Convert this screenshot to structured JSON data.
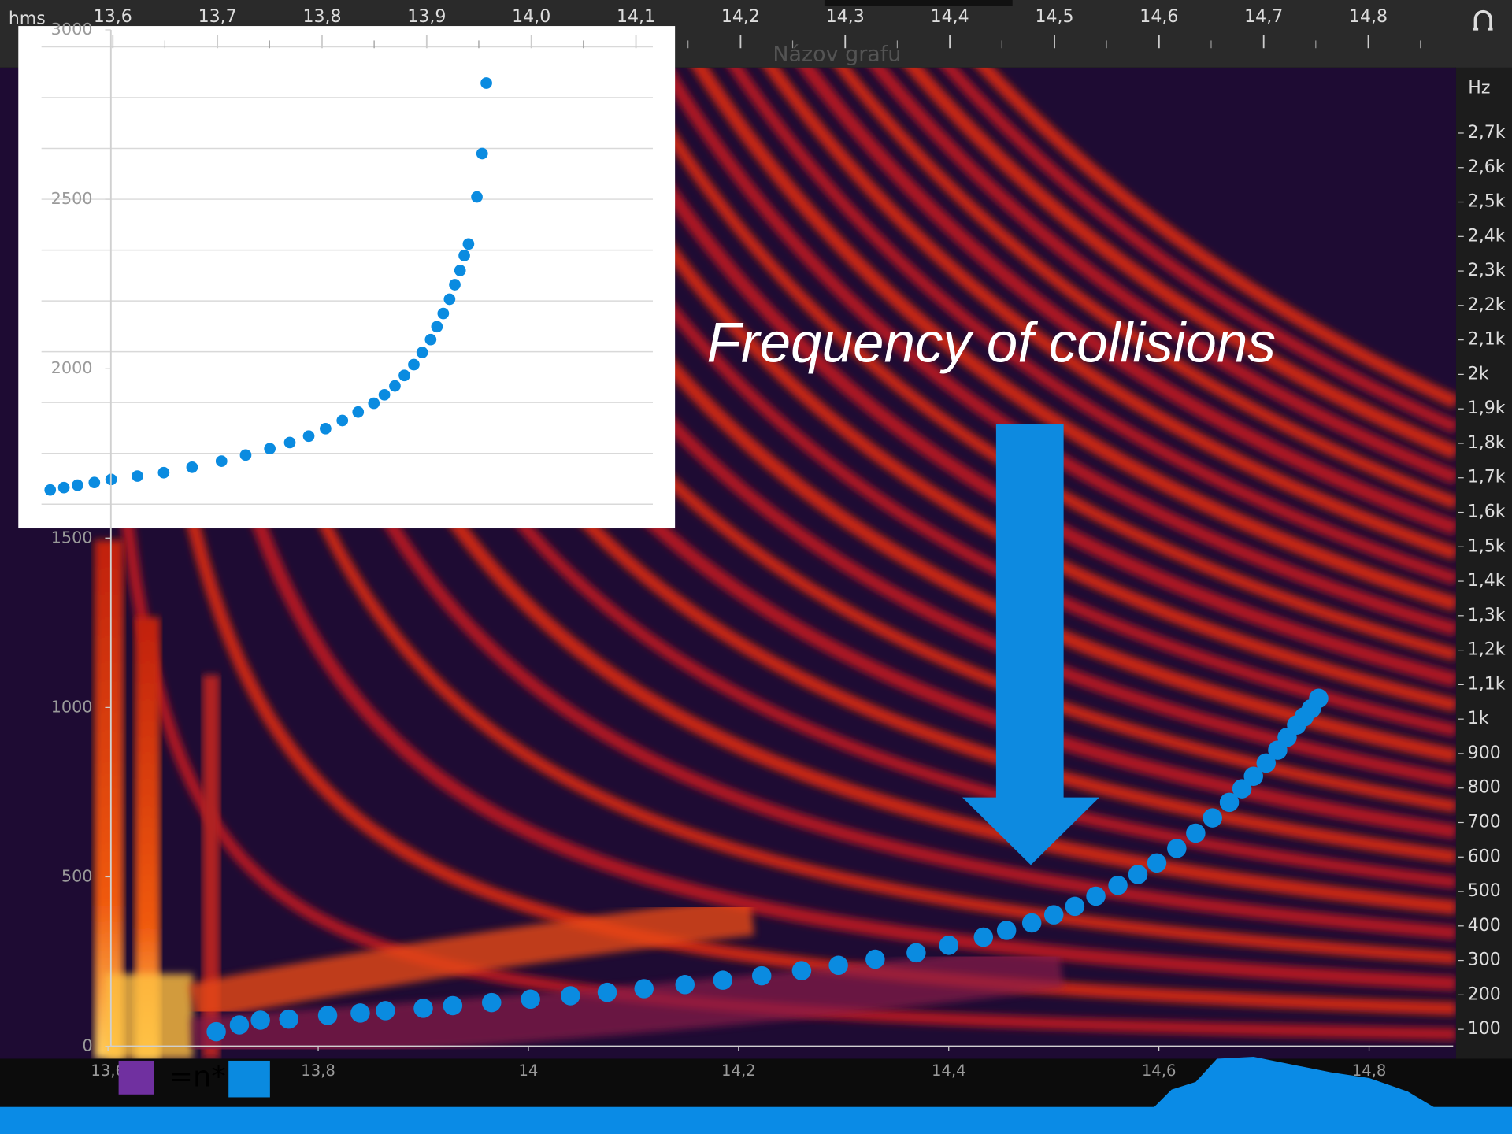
{
  "ruler": {
    "unit": "hms",
    "ticks": [
      "13,6",
      "13,7",
      "13,8",
      "13,9",
      "14,0",
      "14,1",
      "14,2",
      "14,3",
      "14,4",
      "14,5",
      "14,6",
      "14,7",
      "14,8"
    ]
  },
  "frequency_scale": {
    "unit": "Hz",
    "ticks": [
      "2,7k",
      "2,6k",
      "2,5k",
      "2,4k",
      "2,3k",
      "2,2k",
      "2,1k",
      "2k",
      "1,9k",
      "1,8k",
      "1,7k",
      "1,6k",
      "1,5k",
      "1,4k",
      "1,3k",
      "1,2k",
      "1,1k",
      "1k",
      "900",
      "800",
      "700",
      "600",
      "500",
      "400",
      "300",
      "200",
      "100"
    ]
  },
  "annotation": "Frequency of collisions",
  "legend_formula": "=n*",
  "chart_data": [
    {
      "type": "scatter",
      "title": "Názov grafu",
      "color": "#0a8be0",
      "x": [
        13.703,
        13.725,
        13.745,
        13.772,
        13.809,
        13.84,
        13.864,
        13.9,
        13.928,
        13.965,
        14.002,
        14.04,
        14.075,
        14.11,
        14.149,
        14.185,
        14.222,
        14.26,
        14.295,
        14.33,
        14.369,
        14.4,
        14.433,
        14.455,
        14.479,
        14.5,
        14.52,
        14.54,
        14.561,
        14.58,
        14.598,
        14.617,
        14.635,
        14.651,
        14.667,
        14.679,
        14.69,
        14.702,
        14.713,
        14.722,
        14.731,
        14.738,
        14.745,
        14.752
      ],
      "values": [
        43,
        63,
        77,
        80,
        91,
        98,
        105,
        112,
        120,
        129,
        139,
        149,
        159,
        170,
        182,
        195,
        208,
        223,
        239,
        257,
        276,
        298,
        322,
        342,
        364,
        388,
        413,
        443,
        475,
        507,
        541,
        584,
        629,
        674,
        720,
        760,
        797,
        836,
        874,
        912,
        948,
        972,
        996,
        1027
      ],
      "xlim": [
        13.6,
        14.88
      ],
      "ylim": [
        0,
        3000
      ],
      "xticks": [
        {
          "value": 13.6,
          "label": "13,6"
        },
        {
          "value": 13.8,
          "label": "13,8"
        },
        14,
        {
          "value": 14.2,
          "label": "14,2"
        },
        {
          "value": 14.4,
          "label": "14,4"
        },
        {
          "value": 14.6,
          "label": "14,6"
        },
        {
          "value": 14.8,
          "label": "14,8"
        }
      ],
      "yticks": [
        0,
        500,
        1000,
        1500,
        2000,
        2500,
        3000
      ]
    },
    {
      "type": "scatter",
      "color": "#0a8be0",
      "x": [
        13.545,
        13.558,
        13.571,
        13.587,
        13.603,
        13.628,
        13.653,
        13.68,
        13.708,
        13.731,
        13.754,
        13.773,
        13.791,
        13.807,
        13.823,
        13.838,
        13.853,
        13.863,
        13.873,
        13.882,
        13.891,
        13.899,
        13.907,
        13.913,
        13.919,
        13.925,
        13.93,
        13.935,
        13.939,
        13.943,
        13.951,
        13.956,
        13.96
      ],
      "values": [
        1642,
        1649,
        1656,
        1664,
        1673,
        1683,
        1693,
        1709,
        1727,
        1745,
        1764,
        1782,
        1801,
        1823,
        1847,
        1872,
        1898,
        1923,
        1949,
        1980,
        2012,
        2048,
        2086,
        2124,
        2163,
        2205,
        2248,
        2290,
        2334,
        2368,
        2507,
        2635,
        2843
      ],
      "xlim": [
        13.6,
        14.88
      ],
      "ylim": [
        0,
        3000
      ],
      "grid": true,
      "gridlines": [
        1600,
        1750,
        1900,
        2050,
        2200,
        2350,
        2500,
        2650,
        2800,
        2950
      ]
    }
  ]
}
